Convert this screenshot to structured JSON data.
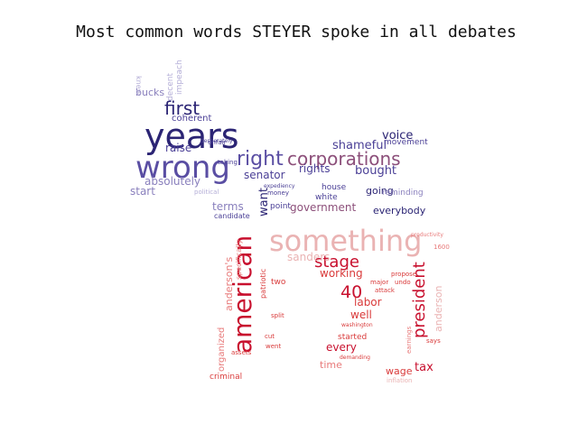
{
  "title": "Most common words STEYER spoke in all debates",
  "palette": {
    "navy": "#2b2474",
    "indigo": "#4a3f96",
    "purple": "#5a4ea3",
    "lavender": "#8a80bd",
    "lilac": "#b4aed7",
    "plum": "#8c4f7a",
    "crimson": "#c8102e",
    "red": "#d93a3a",
    "pink": "#eab3b3",
    "rose": "#e87a7a"
  },
  "words": [
    {
      "text": "years",
      "color": "navy"
    },
    {
      "text": "wrong",
      "color": "purple"
    },
    {
      "text": "first",
      "color": "navy"
    },
    {
      "text": "right",
      "color": "purple"
    },
    {
      "text": "corporations",
      "color": "plum"
    },
    {
      "text": "shameful",
      "color": "indigo"
    },
    {
      "text": "voice",
      "color": "navy"
    },
    {
      "text": "bought",
      "color": "indigo"
    },
    {
      "text": "absolutely",
      "color": "lavender"
    },
    {
      "text": "start",
      "color": "lavender"
    },
    {
      "text": "raise",
      "color": "indigo"
    },
    {
      "text": "bucks",
      "color": "lavender"
    },
    {
      "text": "senator",
      "color": "indigo"
    },
    {
      "text": "rights",
      "color": "indigo"
    },
    {
      "text": "coherent",
      "color": "indigo"
    },
    {
      "text": "terms",
      "color": "lavender"
    },
    {
      "text": "want",
      "color": "navy"
    },
    {
      "text": "going",
      "color": "navy"
    },
    {
      "text": "government",
      "color": "plum"
    },
    {
      "text": "everybody",
      "color": "navy"
    },
    {
      "text": "movement",
      "color": "indigo"
    },
    {
      "text": "reminding",
      "color": "lavender"
    },
    {
      "text": "decent",
      "color": "lilac"
    },
    {
      "text": "impeach",
      "color": "lilac"
    },
    {
      "text": "white",
      "color": "indigo"
    },
    {
      "text": "house",
      "color": "indigo"
    },
    {
      "text": "point",
      "color": "indigo"
    },
    {
      "text": "knew",
      "color": "lilac"
    },
    {
      "text": "unfair",
      "color": "indigo"
    },
    {
      "text": "candidate",
      "color": "indigo"
    },
    {
      "text": "political",
      "color": "lilac"
    },
    {
      "text": "money",
      "color": "indigo"
    },
    {
      "text": "expediency",
      "color": "indigo"
    },
    {
      "text": "taking",
      "color": "indigo"
    },
    {
      "text": "desperately",
      "color": "indigo"
    },
    {
      "text": "something",
      "color": "pink"
    },
    {
      "text": "american",
      "color": "crimson"
    },
    {
      "text": "stage",
      "color": "crimson"
    },
    {
      "text": "president",
      "color": "crimson"
    },
    {
      "text": "40",
      "color": "crimson"
    },
    {
      "text": "sanders",
      "color": "pink"
    },
    {
      "text": "anderson's",
      "color": "rose"
    },
    {
      "text": "working",
      "color": "red"
    },
    {
      "text": "labor",
      "color": "red"
    },
    {
      "text": "well",
      "color": "red"
    },
    {
      "text": "every",
      "color": "crimson"
    },
    {
      "text": "time",
      "color": "rose"
    },
    {
      "text": "wage",
      "color": "red"
    },
    {
      "text": "tax",
      "color": "crimson"
    },
    {
      "text": "criminal",
      "color": "red"
    },
    {
      "text": "organized",
      "color": "rose"
    },
    {
      "text": "anderson",
      "color": "pink"
    },
    {
      "text": "two",
      "color": "red"
    },
    {
      "text": "started",
      "color": "red"
    },
    {
      "text": "patriotic",
      "color": "red"
    },
    {
      "text": "specifically",
      "color": "rose"
    },
    {
      "text": "split",
      "color": "red"
    },
    {
      "text": "attack",
      "color": "red"
    },
    {
      "text": "major",
      "color": "red"
    },
    {
      "text": "undo",
      "color": "red"
    },
    {
      "text": "propose",
      "color": "red"
    },
    {
      "text": "washington",
      "color": "red"
    },
    {
      "text": "demanding",
      "color": "red"
    },
    {
      "text": "inflation",
      "color": "pink"
    },
    {
      "text": "productivity",
      "color": "rose"
    },
    {
      "text": "cut",
      "color": "red"
    },
    {
      "text": "went",
      "color": "red"
    },
    {
      "text": "assets",
      "color": "red"
    },
    {
      "text": "says",
      "color": "red"
    },
    {
      "text": "earnings",
      "color": "rose"
    },
    {
      "text": "1600",
      "color": "rose"
    }
  ]
}
